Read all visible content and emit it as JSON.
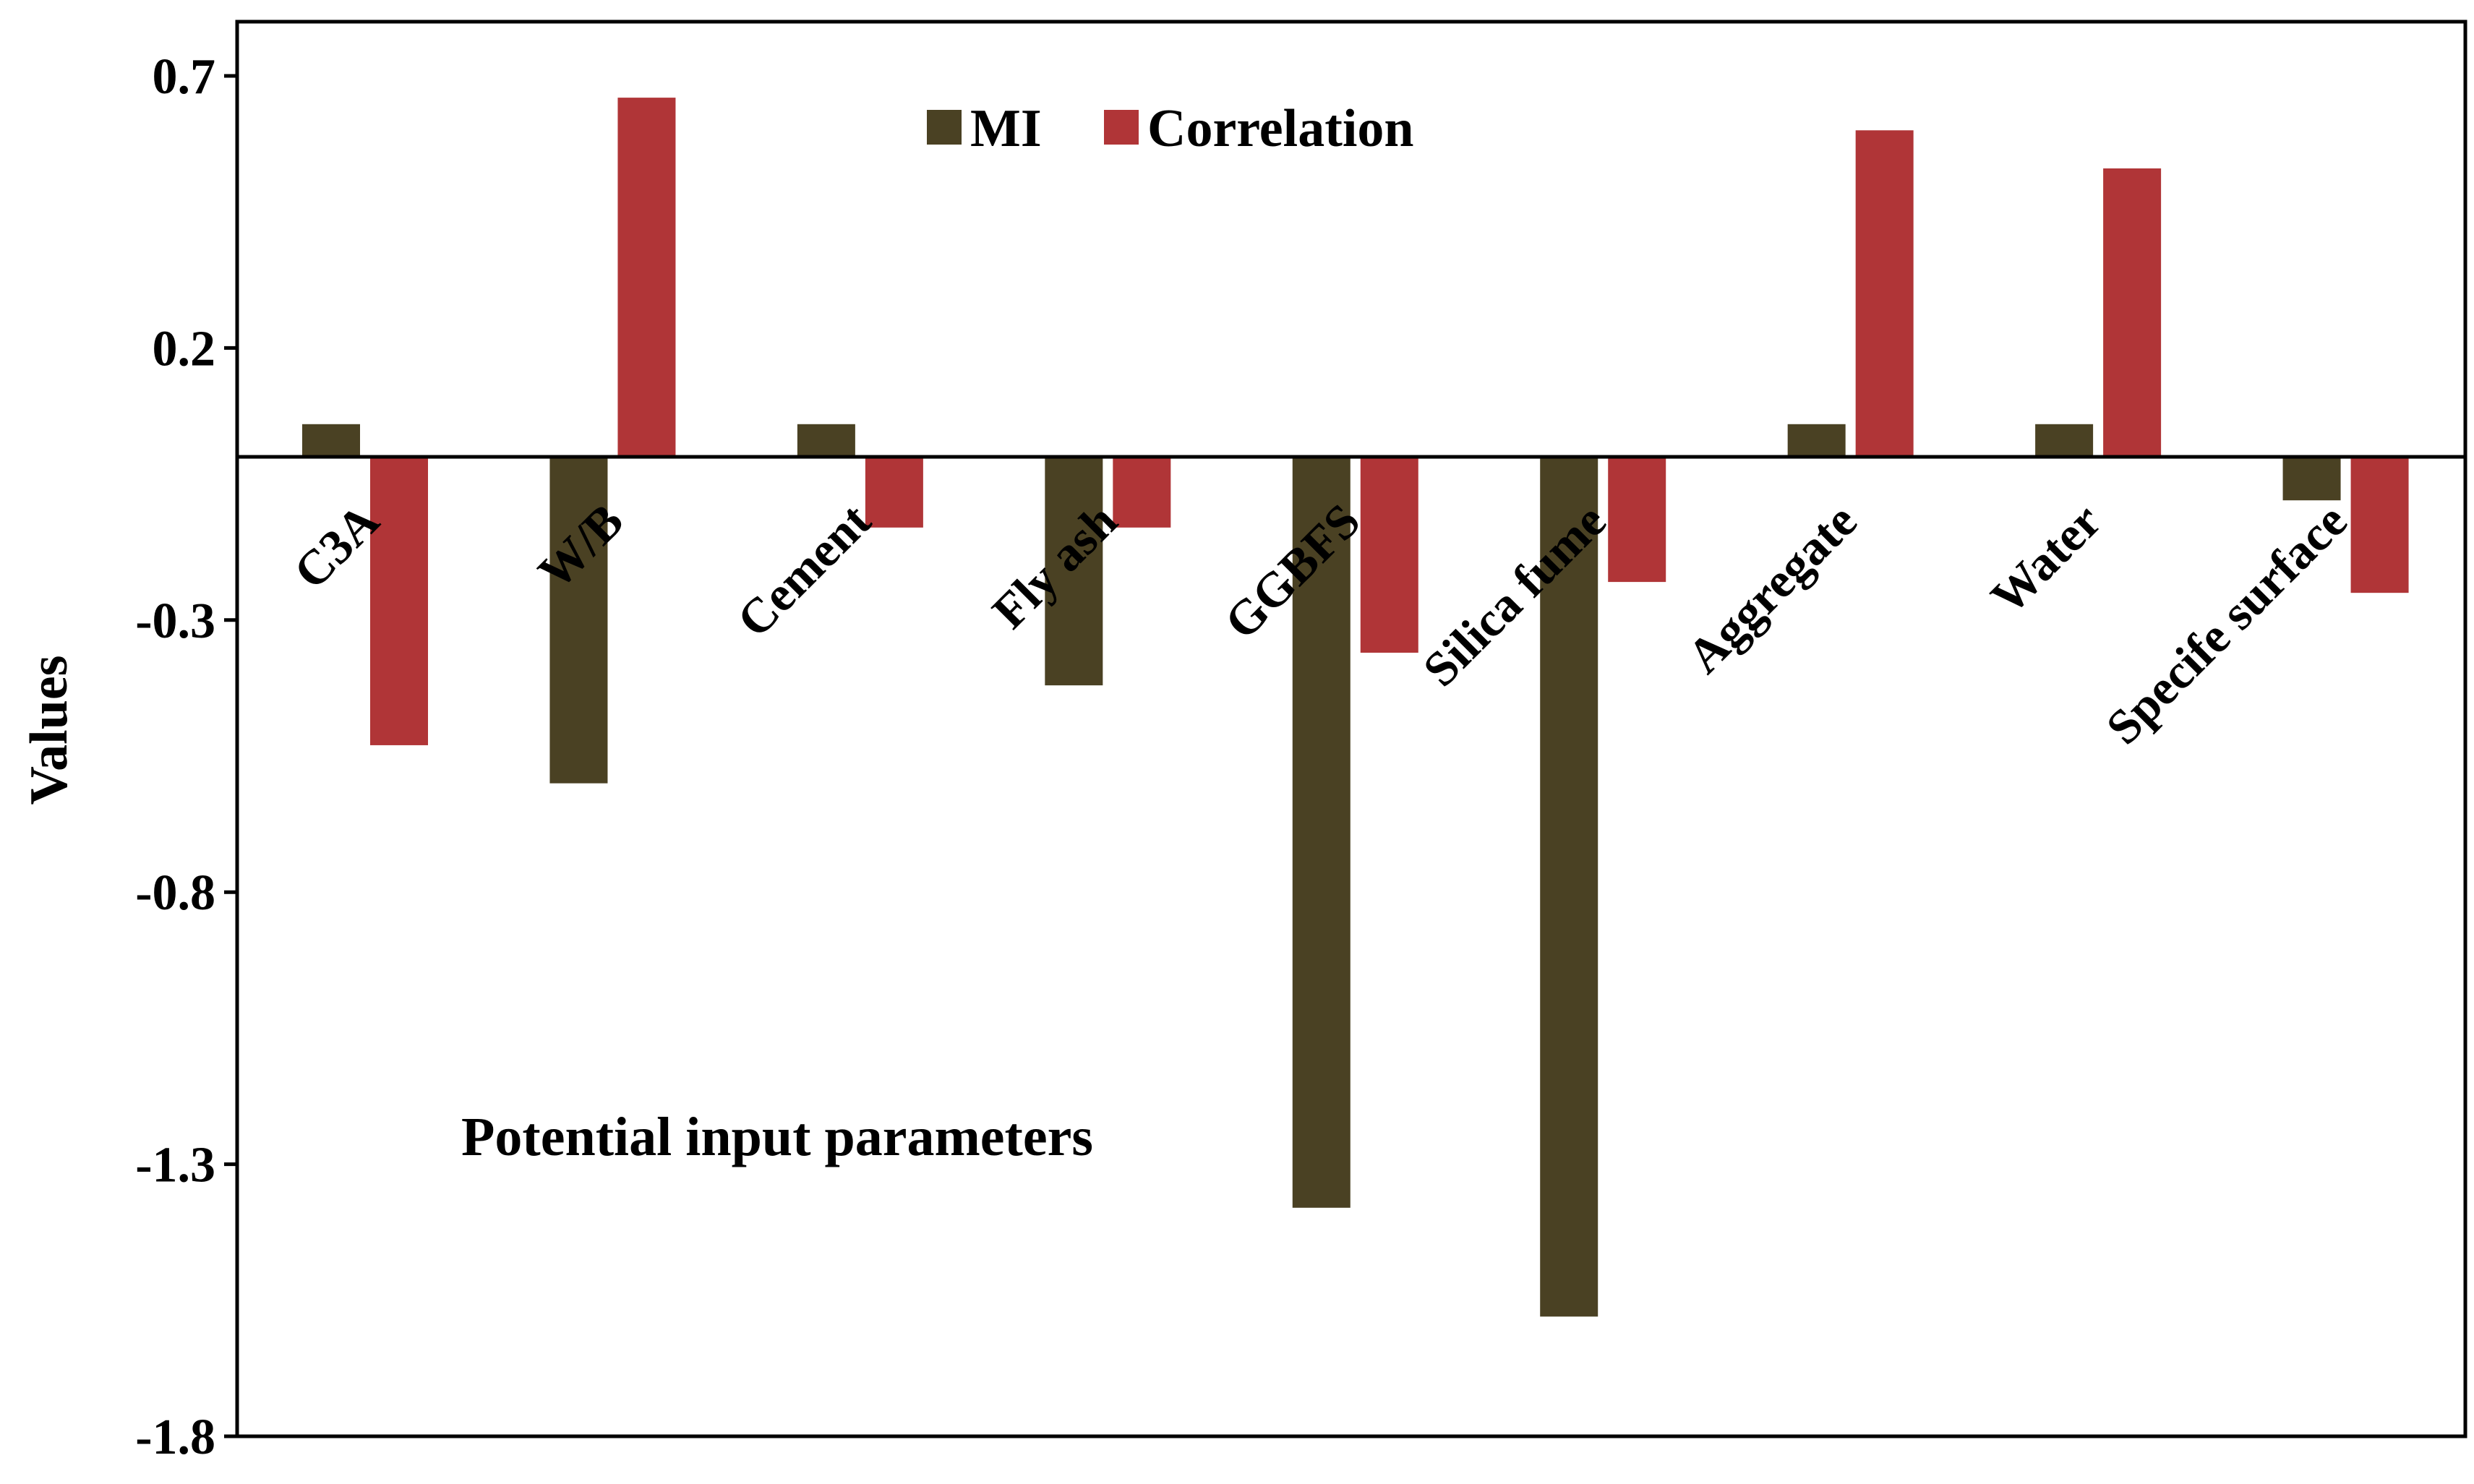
{
  "chart_data": {
    "type": "bar",
    "categories": [
      "C3A",
      "W/B",
      "Cement",
      "Fly ash",
      "GGBFS",
      "Silica fume",
      "Aggregate",
      "Water",
      "Specific surface"
    ],
    "series": [
      {
        "name": "MI",
        "color": "#4a4123",
        "values": [
          0.06,
          -0.6,
          0.06,
          -0.42,
          -1.38,
          -1.58,
          0.06,
          0.06,
          -0.08
        ]
      },
      {
        "name": "Correlation",
        "color": "#b03537",
        "values": [
          -0.53,
          0.66,
          -0.13,
          -0.13,
          -0.36,
          -0.23,
          0.6,
          0.53,
          -0.25
        ]
      }
    ],
    "category_labels": [
      "C3A",
      "W/B",
      "Cement",
      "Fly ash",
      "GGBFS",
      "Silica fume",
      "Aggregate",
      "Water",
      "Specife surface"
    ],
    "ylabel": "Values",
    "annotation": "Potential input parameters",
    "ylim": [
      -1.8,
      0.8
    ],
    "yticks": [
      "0.7",
      "0.2",
      "-0.3",
      "-0.8",
      "-1.3",
      "-1.8"
    ],
    "ytick_values": [
      0.7,
      0.2,
      -0.3,
      -0.8,
      -1.3,
      -1.8
    ],
    "legend_position": "top-center",
    "grid": false
  }
}
